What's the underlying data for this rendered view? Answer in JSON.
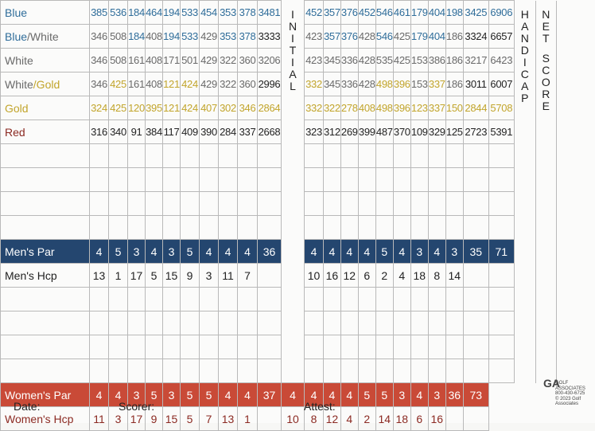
{
  "colors": {
    "blue": "#2f6d9a",
    "white": "#6a6a6a",
    "gold": "#c2a52c",
    "red": "#8b2a22",
    "par_band": "#24466f",
    "women_band": "#c94a37",
    "black": "#222222"
  },
  "side_labels": {
    "initial": [
      "I",
      "N",
      "I",
      "T",
      "I",
      "A",
      "L"
    ],
    "handicap": [
      "H",
      "A",
      "N",
      "D",
      "I",
      "C",
      "A",
      "P"
    ],
    "net": [
      "N",
      "E",
      "T"
    ],
    "score": [
      "S",
      "C",
      "O",
      "R",
      "E"
    ]
  },
  "tees": [
    {
      "name_parts": [
        {
          "t": "Blue",
          "c": "blue"
        }
      ],
      "num_color": "blue",
      "front": [
        "385",
        "536",
        "184",
        "464",
        "194",
        "533",
        "454",
        "353",
        "378"
      ],
      "out": "3481",
      "back": [
        "452",
        "357",
        "376",
        "452",
        "546",
        "461",
        "179",
        "404",
        "198"
      ],
      "in": "3425",
      "total": "6906"
    },
    {
      "name_parts": [
        {
          "t": "Blue",
          "c": "blue"
        },
        {
          "t": "/White",
          "c": "white"
        }
      ],
      "num_color": "white",
      "front": [
        "346",
        "508",
        "184",
        "408",
        "194",
        "533",
        "429",
        "353",
        "378"
      ],
      "out": "3333",
      "back": [
        "423",
        "357",
        "376",
        "428",
        "546",
        "425",
        "179",
        "404",
        "186"
      ],
      "in": "3324",
      "total": "6657"
    },
    {
      "name_parts": [
        {
          "t": "White",
          "c": "white"
        }
      ],
      "num_color": "white",
      "front": [
        "346",
        "508",
        "161",
        "408",
        "171",
        "501",
        "429",
        "322",
        "360"
      ],
      "out": "3206",
      "back": [
        "423",
        "345",
        "336",
        "428",
        "535",
        "425",
        "153",
        "386",
        "186"
      ],
      "in": "3217",
      "total": "6423"
    },
    {
      "name_parts": [
        {
          "t": "White",
          "c": "white"
        },
        {
          "t": "/Gold",
          "c": "gold"
        }
      ],
      "num_color": "white",
      "front": [
        "346",
        "425",
        "161",
        "408",
        "121",
        "424",
        "429",
        "322",
        "360"
      ],
      "out": "2996",
      "back": [
        "332",
        "345",
        "336",
        "428",
        "498",
        "396",
        "153",
        "337",
        "186"
      ],
      "in": "3011",
      "total": "6007"
    },
    {
      "name_parts": [
        {
          "t": "Gold",
          "c": "gold"
        }
      ],
      "num_color": "gold",
      "front": [
        "324",
        "425",
        "120",
        "395",
        "121",
        "424",
        "407",
        "302",
        "346"
      ],
      "out": "2864",
      "back": [
        "332",
        "322",
        "278",
        "408",
        "498",
        "396",
        "123",
        "337",
        "150"
      ],
      "in": "2844",
      "total": "5708"
    },
    {
      "name_parts": [
        {
          "t": "Red",
          "c": "red"
        }
      ],
      "num_color": "black",
      "front": [
        "316",
        "340",
        "91",
        "384",
        "117",
        "409",
        "390",
        "284",
        "337"
      ],
      "out": "2668",
      "back": [
        "323",
        "312",
        "269",
        "399",
        "487",
        "370",
        "109",
        "329",
        "125"
      ],
      "in": "2723",
      "total": "5391"
    }
  ],
  "mens_par": {
    "label": "Men's Par",
    "front": [
      "4",
      "5",
      "3",
      "4",
      "3",
      "5",
      "4",
      "4",
      "4"
    ],
    "out": "36",
    "back": [
      "4",
      "4",
      "4",
      "4",
      "5",
      "4",
      "3",
      "4",
      "3"
    ],
    "in": "35",
    "total": "71"
  },
  "mens_hcp": {
    "label": "Men's Hcp",
    "front": [
      "13",
      "1",
      "17",
      "5",
      "15",
      "9",
      "3",
      "11",
      "7"
    ],
    "back": [
      "10",
      "16",
      "12",
      "6",
      "2",
      "4",
      "18",
      "8",
      "14"
    ]
  },
  "womens_par": {
    "label": "Women's Par",
    "front": [
      "4",
      "4",
      "3",
      "5",
      "3",
      "5",
      "5",
      "4",
      "4"
    ],
    "out": "37",
    "back": [
      "4",
      "4",
      "4",
      "4",
      "5",
      "5",
      "3",
      "4",
      "3"
    ],
    "in": "36",
    "total": "73"
  },
  "womens_hcp": {
    "label": "Women's Hcp",
    "front": [
      "11",
      "3",
      "17",
      "9",
      "15",
      "5",
      "7",
      "13",
      "1"
    ],
    "back": [
      "10",
      "8",
      "12",
      "4",
      "2",
      "14",
      "18",
      "6",
      "16"
    ]
  },
  "footer": {
    "date": "Date:",
    "scorer": "Scorer:",
    "attest": "Attest:"
  },
  "logo": {
    "mark": "GA",
    "lines": [
      "GOLF ASSOCIATES",
      "800-430-6725",
      "© 2023 Golf Associates"
    ]
  }
}
